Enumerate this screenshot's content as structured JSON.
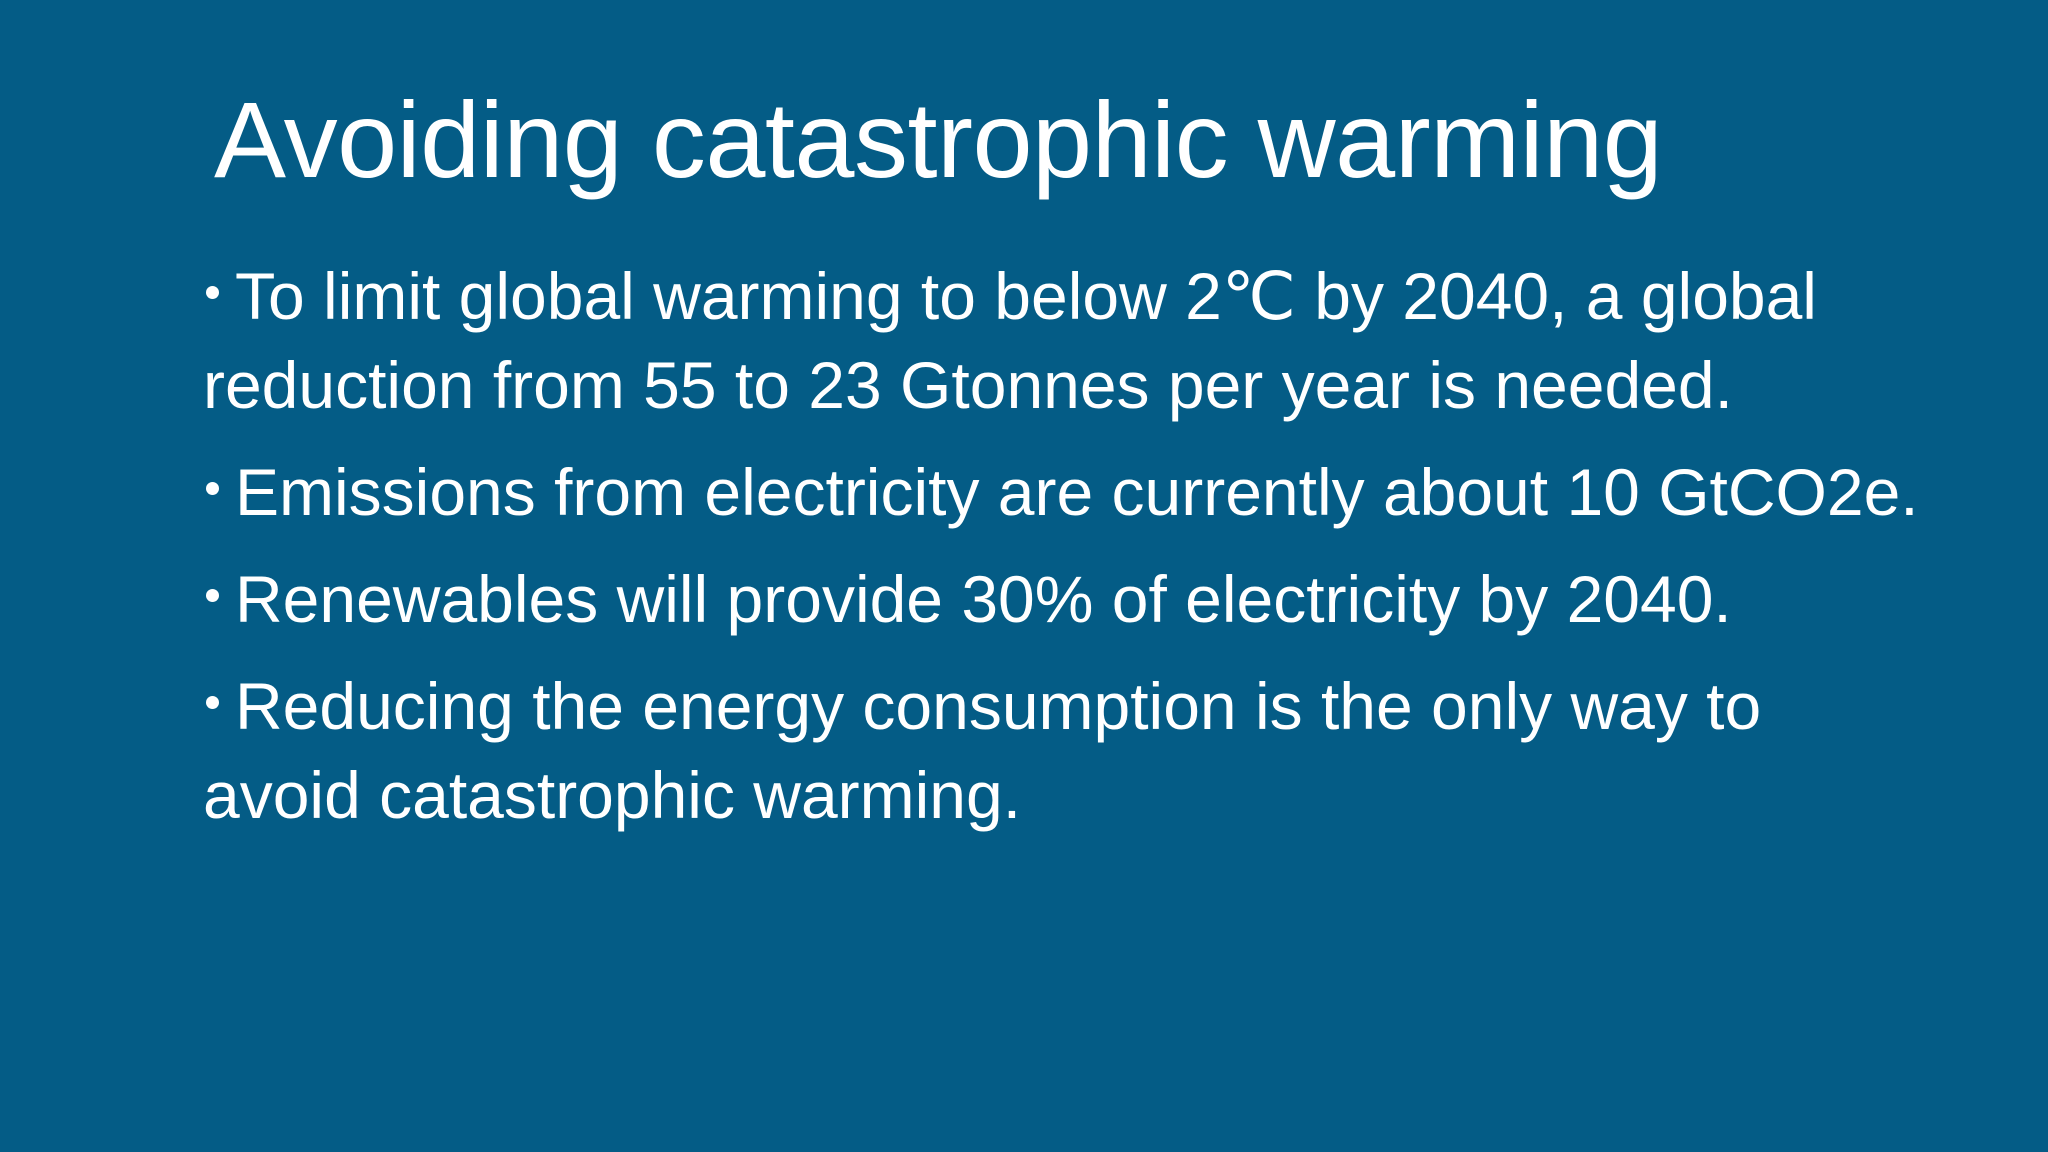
{
  "slide": {
    "title": "Avoiding catastrophic warming",
    "bullets": [
      "To limit global warming to below 2℃ by 2040, a global reduction from 55 to 23 Gtonnes per year is needed.",
      "Emissions from electricity are currently about 10 GtCO2e.",
      "Renewables will provide 30% of electricity by 2040.",
      "Reducing the energy consumption is the only way to avoid catastrophic warming."
    ],
    "colors": {
      "background": "#045c86",
      "text": "#ffffff"
    }
  }
}
